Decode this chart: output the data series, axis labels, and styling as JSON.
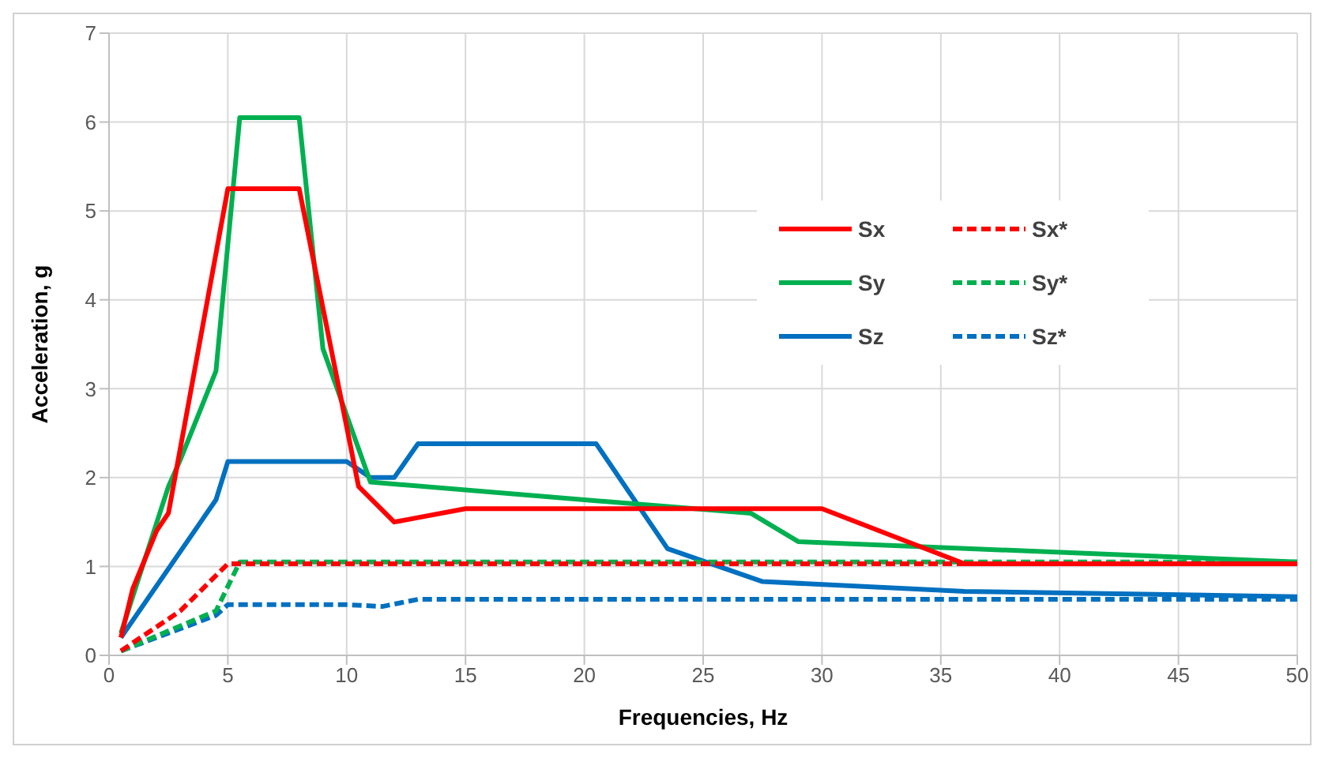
{
  "chart_data": {
    "type": "line",
    "xlabel": "Frequencies, Hz",
    "ylabel": "Acceleration, g",
    "xlim": [
      0,
      50
    ],
    "xticks": [
      0,
      5,
      10,
      15,
      20,
      25,
      30,
      35,
      40,
      45,
      50
    ],
    "ylim": [
      0,
      7
    ],
    "yticks": [
      0,
      1,
      2,
      3,
      4,
      5,
      6,
      7
    ],
    "grid": true,
    "legend": "right",
    "marker": "none",
    "series": [
      {
        "name": "Sx",
        "color": "#ff0000",
        "line_style": "solid",
        "x": [
          0.5,
          1,
          2,
          2.5,
          5,
          8,
          10.5,
          12,
          15,
          30,
          36,
          50
        ],
        "values": [
          0.2,
          0.75,
          1.4,
          1.6,
          5.25,
          5.25,
          1.9,
          1.5,
          1.65,
          1.65,
          1.03,
          1.03
        ]
      },
      {
        "name": "Sx*",
        "color": "#ff0000",
        "line_style": "dashed",
        "x": [
          0.5,
          3,
          5,
          50
        ],
        "values": [
          0.05,
          0.5,
          1.03,
          1.03
        ]
      },
      {
        "name": "Sy",
        "color": "#00b050",
        "line_style": "solid",
        "x": [
          0.5,
          2.5,
          3,
          4.5,
          5.5,
          8,
          9,
          11,
          20,
          27,
          29,
          50
        ],
        "values": [
          0.25,
          1.9,
          2.2,
          3.2,
          6.05,
          6.05,
          3.45,
          1.95,
          1.75,
          1.6,
          1.28,
          1.05
        ]
      },
      {
        "name": "Sy*",
        "color": "#00b050",
        "line_style": "dashed",
        "x": [
          0.5,
          4.5,
          5.5,
          50
        ],
        "values": [
          0.05,
          0.5,
          1.05,
          1.05
        ]
      },
      {
        "name": "Sz",
        "color": "#0070c0",
        "line_style": "solid",
        "x": [
          0.5,
          4.5,
          5,
          10,
          11,
          12,
          13,
          20.5,
          23.5,
          27.5,
          36,
          50
        ],
        "values": [
          0.2,
          1.75,
          2.18,
          2.18,
          2.0,
          2.0,
          2.38,
          2.38,
          1.2,
          0.83,
          0.72,
          0.66
        ]
      },
      {
        "name": "Sz*",
        "color": "#0070c0",
        "line_style": "dashed",
        "x": [
          0.5,
          4.5,
          5,
          10,
          11.5,
          13,
          50
        ],
        "values": [
          0.05,
          0.45,
          0.57,
          0.57,
          0.55,
          0.63,
          0.63
        ]
      }
    ]
  }
}
